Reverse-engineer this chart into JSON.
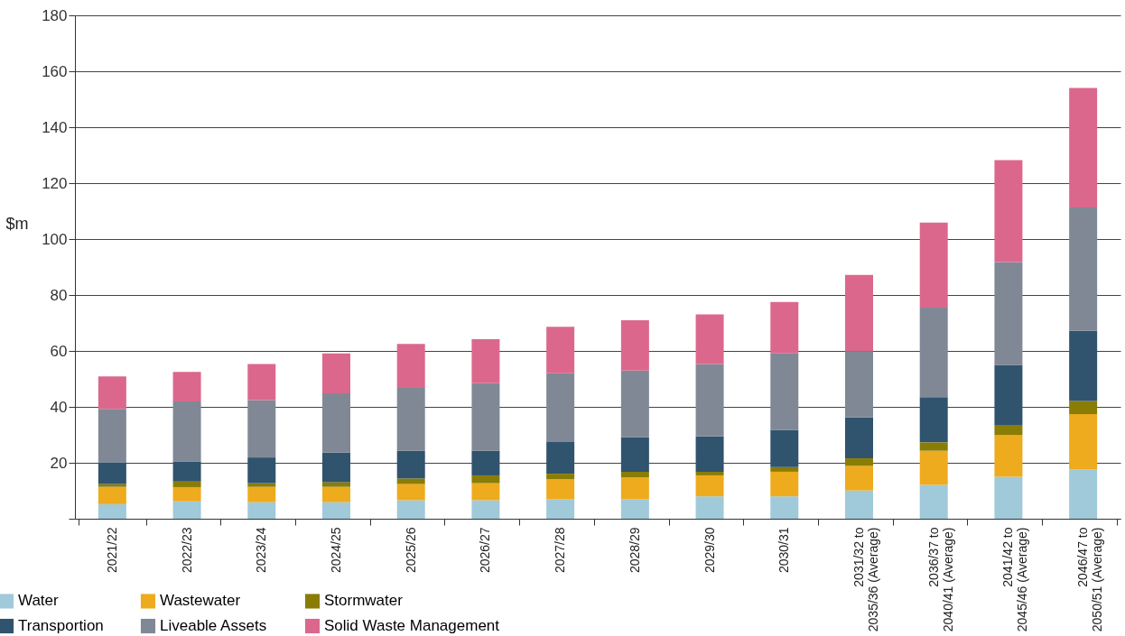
{
  "chart_data": {
    "type": "bar",
    "stacked": true,
    "ylabel": "$m",
    "categories": [
      "2021/22",
      "2022/23",
      "2023/24",
      "2024/25",
      "2025/26",
      "2026/27",
      "2027/28",
      "2028/29",
      "2029/30",
      "2030/31",
      "2031/32 to\n2035/36 (Average)",
      "2036/37 to\n2040/41 (Average)",
      "2041/42 to\n2045/46 (Average)",
      "2046/47 to\n2050/51 (Average)"
    ],
    "series": [
      {
        "name": "Water",
        "color": "#a0c9d9",
        "values": [
          5.2,
          6.2,
          5.9,
          5.9,
          6.6,
          6.6,
          6.9,
          6.9,
          8.0,
          8.0,
          10.1,
          12.1,
          15.0,
          17.7
        ]
      },
      {
        "name": "Wastewater",
        "color": "#eeab1e",
        "values": [
          6.2,
          5.1,
          5.5,
          5.5,
          5.8,
          6.1,
          7.2,
          7.9,
          7.5,
          8.8,
          8.8,
          12.2,
          14.9,
          19.7
        ]
      },
      {
        "name": "Stormwater",
        "color": "#8a7d05",
        "values": [
          1.0,
          2.0,
          1.3,
          1.7,
          2.0,
          2.8,
          2.0,
          2.0,
          1.3,
          1.7,
          2.7,
          3.0,
          3.4,
          4.7
        ]
      },
      {
        "name": "Transportion",
        "color": "#30536e",
        "values": [
          7.8,
          7.2,
          9.2,
          10.5,
          9.9,
          8.8,
          11.3,
          12.3,
          12.6,
          13.3,
          14.6,
          16.2,
          21.7,
          25.1
        ]
      },
      {
        "name": "Liveable Assets",
        "color": "#818895",
        "values": [
          19.1,
          21.4,
          20.5,
          21.2,
          22.5,
          24.2,
          24.6,
          23.9,
          25.9,
          27.3,
          23.7,
          32.0,
          36.8,
          44.1
        ]
      },
      {
        "name": "Solid Waste Management",
        "color": "#db688c",
        "values": [
          11.6,
          10.6,
          12.9,
          14.3,
          15.7,
          15.7,
          16.6,
          18.0,
          17.8,
          18.4,
          27.3,
          30.4,
          36.4,
          42.7
        ]
      }
    ],
    "ylim": [
      0,
      180
    ],
    "yticks": [
      {
        "value": 0,
        "label": null
      },
      20,
      40,
      60,
      80,
      100,
      120,
      140,
      160,
      180
    ],
    "grid": "y",
    "legend": "bottom left"
  }
}
